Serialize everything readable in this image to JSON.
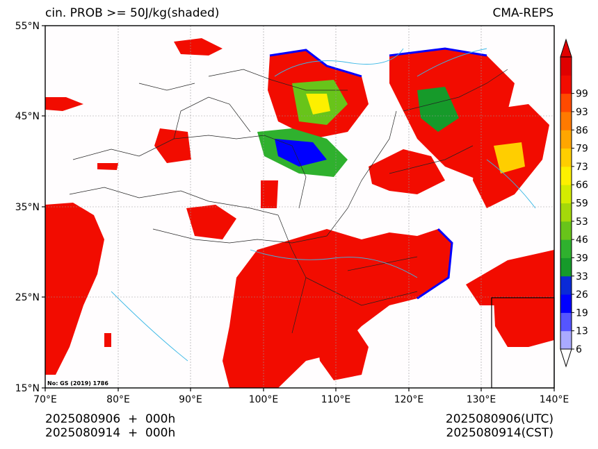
{
  "header": {
    "title_left": "cin. PROB >= 50J/kg(shaded)",
    "title_right": "CMA-REPS"
  },
  "map": {
    "lat_labels": [
      "55°N",
      "45°N",
      "35°N",
      "25°N",
      "15°N"
    ],
    "lon_labels": [
      "70°E",
      "80°E",
      "90°E",
      "100°E",
      "110°E",
      "120°E",
      "130°E",
      "140°E"
    ],
    "lat_range": [
      15,
      55
    ],
    "lon_range": [
      70,
      140
    ],
    "review_number": "No: GS (2019) 1786"
  },
  "colorbar": {
    "ticks": [
      "6",
      "13",
      "19",
      "26",
      "33",
      "39",
      "46",
      "53",
      "59",
      "66",
      "73",
      "79",
      "86",
      "93",
      "99"
    ],
    "colors": [
      "#aaaaff",
      "#5555ff",
      "#0000ff",
      "#0a2ad6",
      "#169a2a",
      "#2fb12e",
      "#68c41a",
      "#a4d80a",
      "#d4ec00",
      "#fdf000",
      "#ffce00",
      "#ffa600",
      "#ff7a00",
      "#ff4a00",
      "#f20c00",
      "#e00000"
    ]
  },
  "footer": {
    "left_line1": "2025080906  +  000h",
    "left_line2": "2025080914  +  000h",
    "right_line1": "2025080906(UTC)",
    "right_line2": "2025080914(CST)"
  }
}
